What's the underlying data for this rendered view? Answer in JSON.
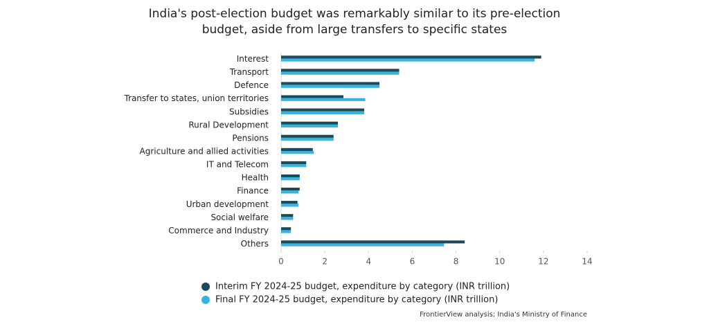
{
  "chart_data": {
    "type": "hbar",
    "title": [
      "India's post-election budget was remarkably similar to its pre-election",
      "budget, aside from large transfers to specific states"
    ],
    "categories": [
      "Interest",
      "Transport",
      "Defence",
      "Transfer to states, union territories",
      "Subsidies",
      "Rural Development",
      "Pensions",
      "Agriculture and allied activities",
      "IT and Telecom",
      "Health",
      "Finance",
      "Urban development",
      "Social welfare",
      "Commerce and Industry",
      "Others"
    ],
    "series": [
      {
        "name": "Interim FY 2024-25 budget, expenditure by category (INR trillion)",
        "color": "#1c4a59",
        "values": [
          11.9,
          5.4,
          4.5,
          2.85,
          3.8,
          2.6,
          2.4,
          1.45,
          1.15,
          0.85,
          0.85,
          0.75,
          0.55,
          0.45,
          8.4
        ]
      },
      {
        "name": "Final FY 2024-25 budget, expenditure by category (INR trillion)",
        "color": "#38b3e0",
        "values": [
          11.6,
          5.4,
          4.5,
          3.85,
          3.8,
          2.6,
          2.4,
          1.5,
          1.15,
          0.85,
          0.8,
          0.8,
          0.55,
          0.45,
          7.45
        ]
      }
    ],
    "xlim": [
      0,
      14
    ],
    "xticks": [
      0,
      2,
      4,
      6,
      8,
      10,
      12,
      14
    ],
    "source": "FrontierView analysis; India's Ministry of Finance"
  }
}
